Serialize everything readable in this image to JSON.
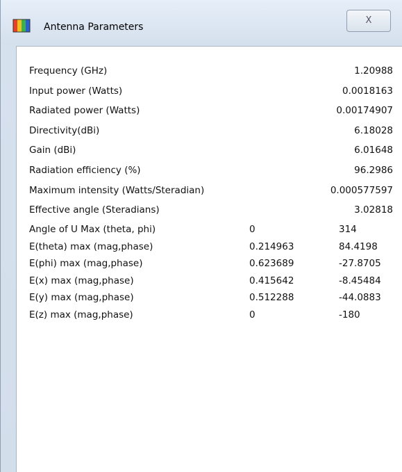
{
  "window": {
    "title": "Antenna Parameters",
    "close": "X"
  },
  "rows": [
    {
      "label": "Frequency (GHz)",
      "value": "1.20988"
    },
    {
      "label": "Input power (Watts)",
      "value": "0.0018163"
    },
    {
      "label": "Radiated power (Watts)",
      "value": "0.00174907"
    },
    {
      "label": "Directivity(dBi)",
      "value": "6.18028"
    },
    {
      "label": "Gain (dBi)",
      "value": "6.01648"
    },
    {
      "label": "Radiation efficiency (%)",
      "value": "96.2986"
    },
    {
      "label": "Maximum intensity (Watts/Steradian)",
      "value": "0.000577597"
    },
    {
      "label": "Effective angle (Steradians)",
      "value": "3.02818"
    }
  ],
  "pairs": [
    {
      "label": "Angle of U Max (theta, phi)",
      "values": [
        "0",
        "314"
      ]
    },
    {
      "label": "E(theta) max (mag,phase)",
      "values": [
        "0.214963",
        "84.4198"
      ]
    },
    {
      "label": "E(phi) max (mag,phase)",
      "values": [
        "0.623689",
        "-27.8705"
      ]
    },
    {
      "label": "E(x) max (mag,phase)",
      "values": [
        "0.415642",
        "-8.45484"
      ]
    },
    {
      "label": "E(y) max (mag,phase)",
      "values": [
        "0.512288",
        "-44.0883"
      ]
    },
    {
      "label": "E(z) max (mag,phase)",
      "values": [
        "0",
        "-180"
      ]
    }
  ]
}
